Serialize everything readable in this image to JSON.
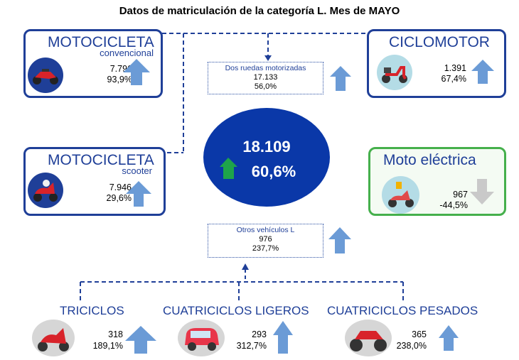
{
  "title": "Datos de matriculación de la categoría L. Mes de MAYO",
  "center": {
    "value": "18.109",
    "pct": "60,6%",
    "trend": "up",
    "color": "#0a38a8"
  },
  "cards": {
    "moto_conv": {
      "title": "MOTOCICLETA",
      "subtitle": "convencional",
      "value": "7.796",
      "pct": "93,9%",
      "trend": "up"
    },
    "ciclomotor": {
      "title": "CICLOMOTOR",
      "value": "1.391",
      "pct": "67,4%",
      "trend": "up"
    },
    "moto_scooter": {
      "title": "MOTOCICLETA",
      "subtitle": "scooter",
      "value": "7.946",
      "pct": "29,6%",
      "trend": "up"
    },
    "moto_electrica": {
      "title": "Moto eléctrica",
      "value": "967",
      "pct": "-44,5%",
      "trend": "down"
    }
  },
  "dos_ruedas": {
    "label": "Dos ruedas motorizadas",
    "value": "17.133",
    "pct": "56,0%",
    "trend": "up"
  },
  "otros": {
    "label": "Otros vehículos L",
    "value": "976",
    "pct": "237,7%",
    "trend": "up"
  },
  "bottom": {
    "triciclos": {
      "title": "TRICICLOS",
      "value": "318",
      "pct": "189,1%",
      "trend": "up"
    },
    "cuad_ligeros": {
      "title": "CUATRICICLOS LIGEROS",
      "value": "293",
      "pct": "312,7%",
      "trend": "up"
    },
    "cuad_pesados": {
      "title": "CUATRICICLOS PESADOS",
      "value": "365",
      "pct": "238,0%",
      "trend": "up"
    }
  },
  "colors": {
    "blue_border": "#1f3f98",
    "green_border": "#45b04c",
    "arrow_up": "#6b9bd6",
    "arrow_down": "#c9c9c9",
    "arrow_center": "#1ea44a"
  }
}
